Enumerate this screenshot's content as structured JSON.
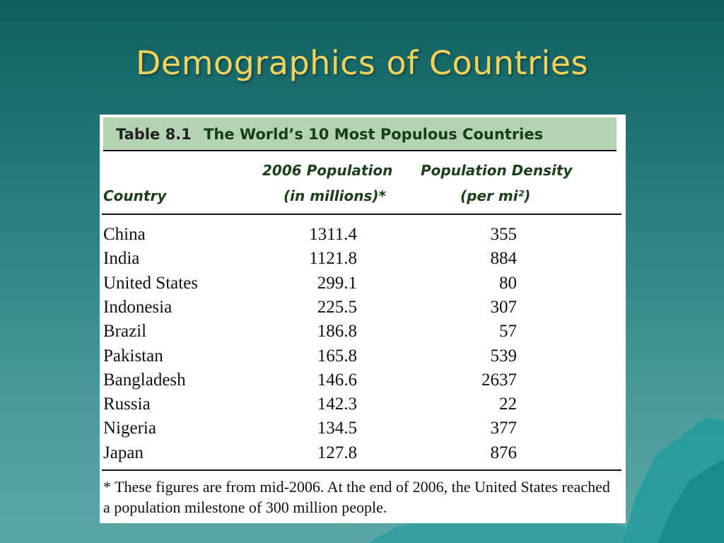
{
  "slide": {
    "title": "Demographics of Countries"
  },
  "table": {
    "caption_number": "Table 8.1",
    "caption_title": "The World’s 10 Most Populous Countries",
    "headers": {
      "country": "Country",
      "population_line1": "2006 Population",
      "population_line2": "(in millions)*",
      "density_line1": "Population Density",
      "density_line2": "(per mi²)"
    },
    "rows": [
      {
        "country": "China",
        "population": "1311.4",
        "density": "355"
      },
      {
        "country": "India",
        "population": "1121.8",
        "density": "884"
      },
      {
        "country": "United States",
        "population": "299.1",
        "density": "80"
      },
      {
        "country": "Indonesia",
        "population": "225.5",
        "density": "307"
      },
      {
        "country": "Brazil",
        "population": "186.8",
        "density": "57"
      },
      {
        "country": "Pakistan",
        "population": "165.8",
        "density": "539"
      },
      {
        "country": "Bangladesh",
        "population": "146.6",
        "density": "2637"
      },
      {
        "country": "Russia",
        "population": "142.3",
        "density": "22"
      },
      {
        "country": "Nigeria",
        "population": "134.5",
        "density": "377"
      },
      {
        "country": "Japan",
        "population": "127.8",
        "density": "876"
      }
    ],
    "footnote": "* These figures are from mid-2006. At the end of 2006, the United States reached a population milestone of 300 million people."
  },
  "colors": {
    "title": "#f2d25a",
    "background_top": "#0f5f60",
    "background_bottom": "#5aa7a8",
    "caption_band": "#b3d3b3",
    "header_text": "#1a3f1a"
  }
}
